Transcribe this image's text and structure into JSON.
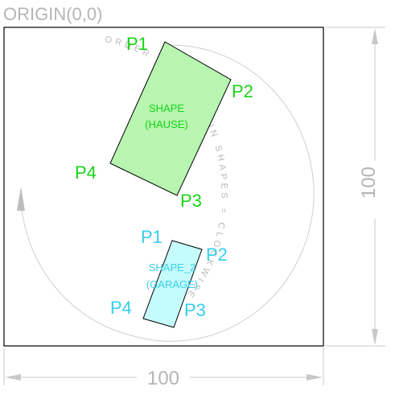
{
  "origin_label": "ORIGIN(0,0)",
  "width_dimension": "100",
  "height_dimension": "100",
  "order_note": "ORDER OF POINTS IN SHAPES = CLOCKWISE",
  "shape_1": {
    "name": "SHAPE",
    "subname": "(HAUSE)",
    "points": [
      "P1",
      "P2",
      "P3",
      "P4"
    ],
    "fill": "#b7f5b0",
    "label_color": "#16d416"
  },
  "shape_2": {
    "name": "SHAPE_2",
    "subname": "(GARAGE)",
    "points": [
      "P1",
      "P2",
      "P3",
      "P4"
    ],
    "fill": "#c6fbfb",
    "label_color": "#35d0ea"
  },
  "colors": {
    "outline": "#000000",
    "dimension": "#b5b5b5"
  }
}
